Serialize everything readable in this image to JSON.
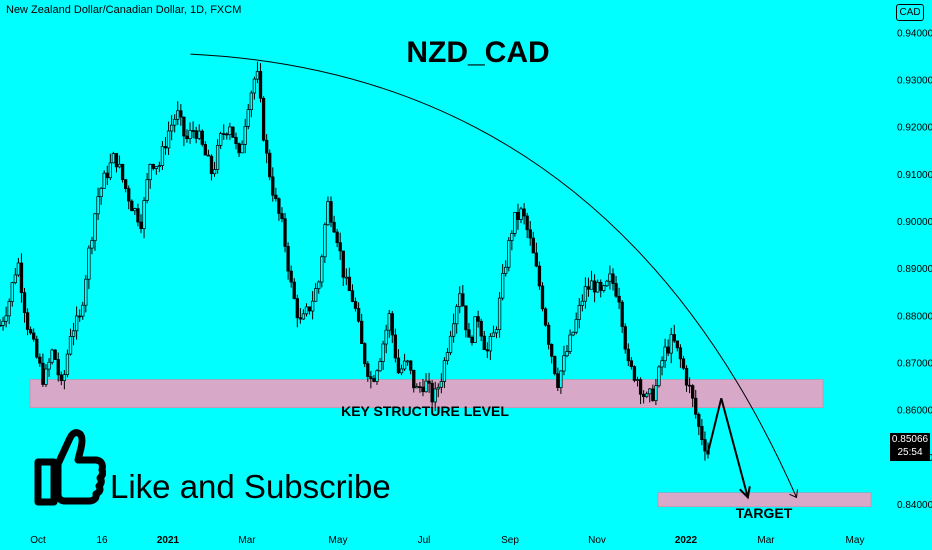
{
  "header": {
    "symbol_text": "New Zealand Dollar/Canadian Dollar, 1D, FXCM",
    "currency": "CAD"
  },
  "price_tag": {
    "price": "0.85066",
    "countdown": "25:54"
  },
  "like_subscribe": {
    "text": "Like and Subscribe"
  },
  "colors": {
    "background": "#00ffff",
    "zone": "#d8a8c8",
    "candle": "#000000"
  },
  "chart_data": {
    "type": "candlestick",
    "title": "NZD_CAD",
    "xlabel": "",
    "ylabel": "",
    "ylim": [
      0.835,
      0.9423
    ],
    "y_ticks": [
      "0.94000",
      "0.93000",
      "0.92000",
      "0.91000",
      "0.90000",
      "0.89000",
      "0.88000",
      "0.87000",
      "0.86000",
      "0.85000",
      "0.84000"
    ],
    "x_ticks": [
      "Oct",
      "16",
      "2021",
      "Mar",
      "May",
      "Jul",
      "Sep",
      "Nov",
      "2022",
      "Mar",
      "May"
    ],
    "close_path": [
      [
        0.0,
        0.878
      ],
      [
        0.01,
        0.883
      ],
      [
        0.02,
        0.892
      ],
      [
        0.03,
        0.879
      ],
      [
        0.04,
        0.872
      ],
      [
        0.05,
        0.866
      ],
      [
        0.06,
        0.873
      ],
      [
        0.07,
        0.864
      ],
      [
        0.08,
        0.877
      ],
      [
        0.09,
        0.879
      ],
      [
        0.1,
        0.893
      ],
      [
        0.11,
        0.905
      ],
      [
        0.12,
        0.91
      ],
      [
        0.13,
        0.914
      ],
      [
        0.14,
        0.908
      ],
      [
        0.15,
        0.903
      ],
      [
        0.16,
        0.9
      ],
      [
        0.17,
        0.913
      ],
      [
        0.18,
        0.912
      ],
      [
        0.19,
        0.919
      ],
      [
        0.2,
        0.923
      ],
      [
        0.21,
        0.917
      ],
      [
        0.22,
        0.92
      ],
      [
        0.23,
        0.915
      ],
      [
        0.24,
        0.91
      ],
      [
        0.25,
        0.918
      ],
      [
        0.26,
        0.921
      ],
      [
        0.27,
        0.913
      ],
      [
        0.28,
        0.925
      ],
      [
        0.29,
        0.932
      ],
      [
        0.3,
        0.915
      ],
      [
        0.31,
        0.905
      ],
      [
        0.32,
        0.898
      ],
      [
        0.33,
        0.885
      ],
      [
        0.34,
        0.878
      ],
      [
        0.35,
        0.882
      ],
      [
        0.36,
        0.887
      ],
      [
        0.37,
        0.904
      ],
      [
        0.38,
        0.898
      ],
      [
        0.39,
        0.887
      ],
      [
        0.4,
        0.883
      ],
      [
        0.41,
        0.872
      ],
      [
        0.42,
        0.866
      ],
      [
        0.43,
        0.872
      ],
      [
        0.44,
        0.88
      ],
      [
        0.45,
        0.868
      ],
      [
        0.46,
        0.87
      ],
      [
        0.47,
        0.864
      ],
      [
        0.48,
        0.866
      ],
      [
        0.49,
        0.862
      ],
      [
        0.5,
        0.868
      ],
      [
        0.51,
        0.878
      ],
      [
        0.52,
        0.886
      ],
      [
        0.53,
        0.874
      ],
      [
        0.54,
        0.88
      ],
      [
        0.55,
        0.872
      ],
      [
        0.56,
        0.877
      ],
      [
        0.57,
        0.89
      ],
      [
        0.58,
        0.9
      ],
      [
        0.59,
        0.902
      ],
      [
        0.6,
        0.895
      ],
      [
        0.61,
        0.886
      ],
      [
        0.62,
        0.875
      ],
      [
        0.63,
        0.866
      ],
      [
        0.64,
        0.872
      ],
      [
        0.65,
        0.878
      ],
      [
        0.66,
        0.885
      ],
      [
        0.67,
        0.887
      ],
      [
        0.68,
        0.884
      ],
      [
        0.69,
        0.888
      ],
      [
        0.7,
        0.884
      ],
      [
        0.71,
        0.869
      ],
      [
        0.72,
        0.867
      ],
      [
        0.73,
        0.862
      ],
      [
        0.74,
        0.864
      ],
      [
        0.75,
        0.872
      ],
      [
        0.76,
        0.875
      ],
      [
        0.77,
        0.87
      ],
      [
        0.78,
        0.864
      ],
      [
        0.79,
        0.856
      ],
      [
        0.8,
        0.851
      ]
    ],
    "support_zone": {
      "label": "KEY STRUCTURE LEVEL",
      "low": 0.8605,
      "high": 0.8665
    },
    "target_zone": {
      "label": "TARGET",
      "low": 0.8395,
      "high": 0.8425
    },
    "projection_path": [
      [
        0.8,
        0.851
      ],
      [
        0.815,
        0.8625
      ],
      [
        0.845,
        0.8415
      ]
    ],
    "resistance_arc": [
      [
        0.215,
        0.9355
      ],
      [
        0.9,
        0.8415
      ]
    ],
    "grid": false,
    "legend": "none"
  }
}
